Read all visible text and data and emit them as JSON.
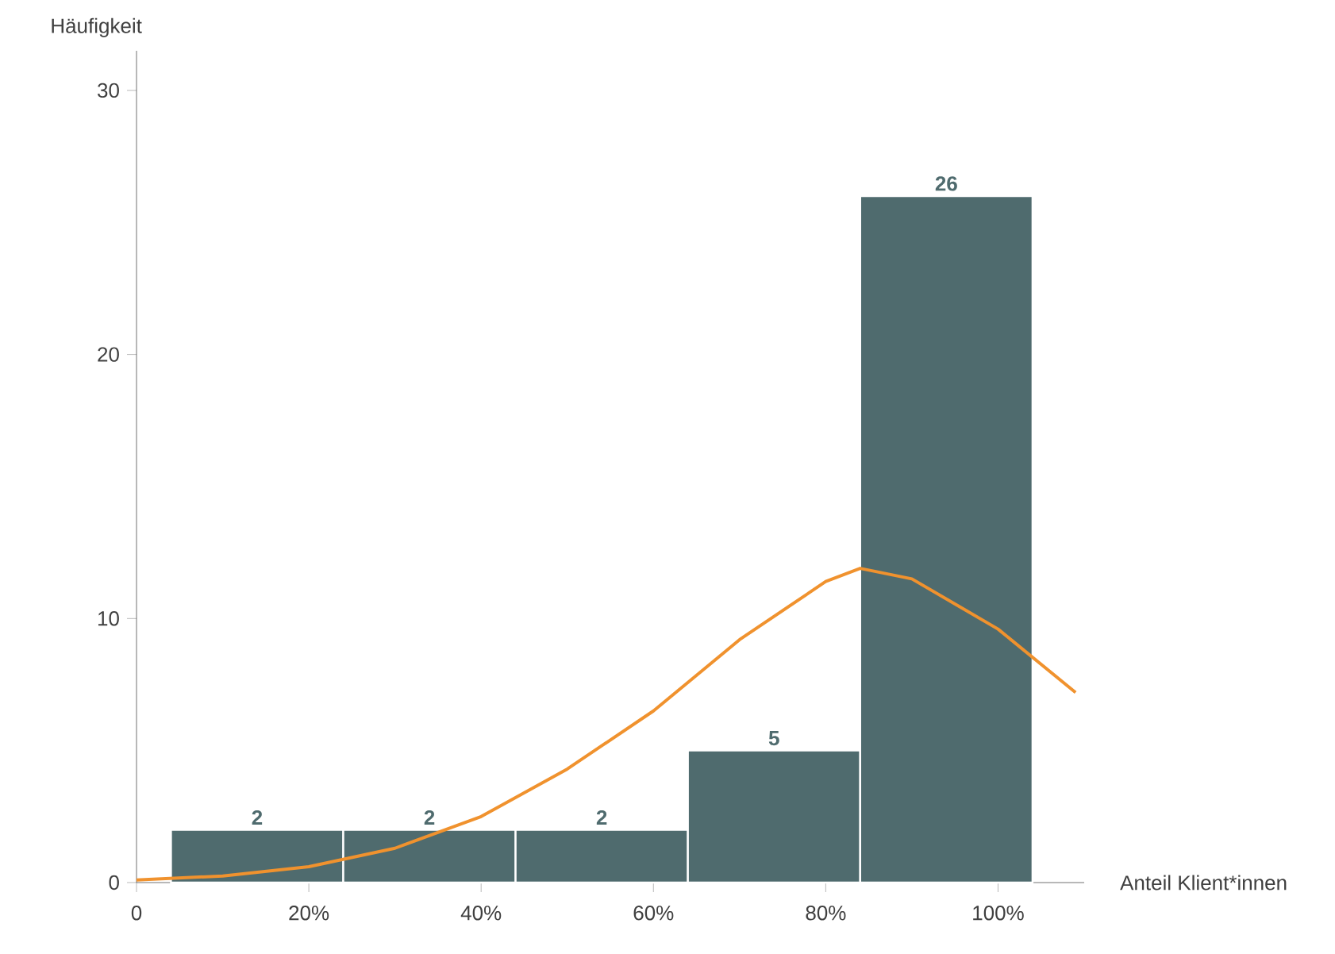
{
  "chart_data": {
    "type": "histogram",
    "xlabel": "Anteil Klient*innen",
    "ylabel": "Häufigkeit",
    "bins": [
      4,
      24,
      44,
      64,
      84,
      104
    ],
    "values": [
      2,
      2,
      2,
      5,
      26
    ],
    "color": "#4f6b6e",
    "value_labels": [
      "2",
      "2",
      "2",
      "5",
      "26"
    ],
    "series": [
      {
        "type": "line",
        "color": "#f0922e",
        "x": [
          0,
          10,
          20,
          30,
          40,
          50,
          60,
          70,
          80,
          84,
          90,
          100,
          109
        ],
        "values": [
          0.1,
          0.25,
          0.6,
          1.3,
          2.5,
          4.3,
          6.5,
          9.2,
          11.4,
          11.9,
          11.5,
          9.6,
          7.2
        ]
      }
    ],
    "xlim": [
      0,
      110
    ],
    "ylim": [
      0,
      31.5
    ],
    "xticks": [
      0,
      {
        "value": 20,
        "label": "20%"
      },
      {
        "value": 40,
        "label": "40%"
      },
      {
        "value": 60,
        "label": "60%"
      },
      {
        "value": 80,
        "label": "80%"
      },
      {
        "value": 100,
        "label": "100%"
      }
    ],
    "yticks": [
      0,
      10,
      20,
      30
    ],
    "grid": false,
    "marker": "none",
    "line_style": "solid"
  }
}
